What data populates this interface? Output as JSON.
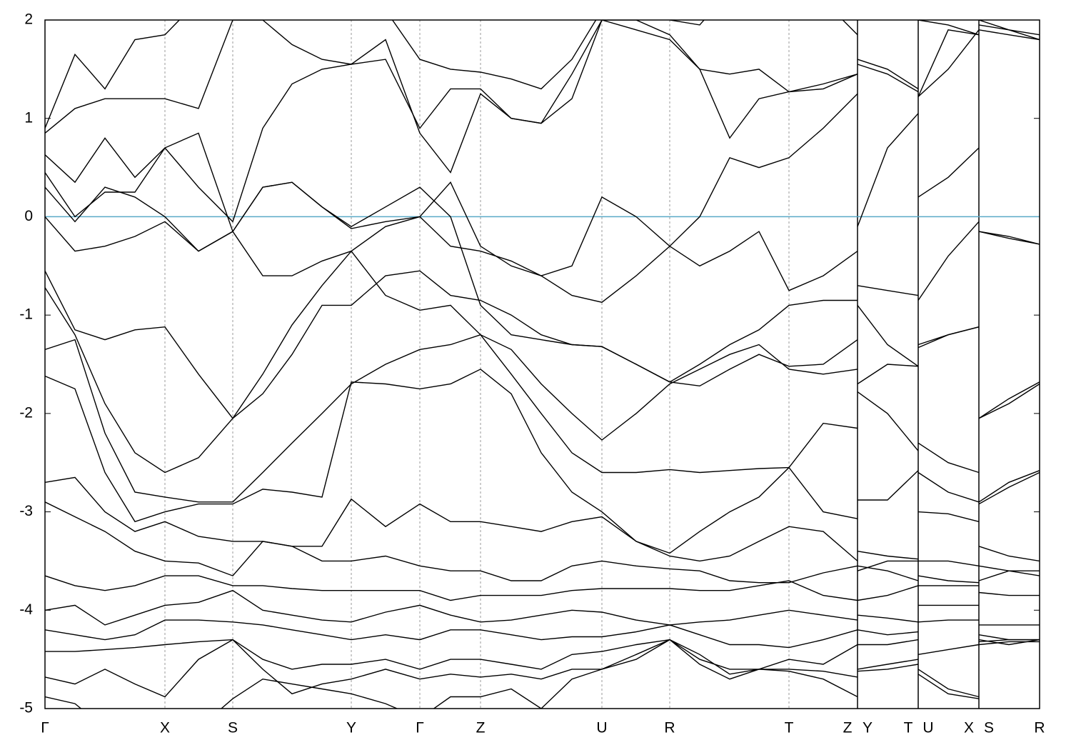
{
  "chart_data": {
    "type": "line",
    "xlim": [
      0,
      13.93
    ],
    "ylim": [
      -5,
      2
    ],
    "yticks": [
      -5,
      -4,
      -3,
      -2,
      -1,
      0,
      1,
      2
    ],
    "xticks": [
      {
        "value": 0,
        "label": "Γ"
      },
      {
        "value": 1.68,
        "label": "X"
      },
      {
        "value": 2.63,
        "label": "S"
      },
      {
        "value": 4.29,
        "label": "Y"
      },
      {
        "value": 5.25,
        "label": "Γ"
      },
      {
        "value": 6.1,
        "label": "Z"
      },
      {
        "value": 7.8,
        "label": "U"
      },
      {
        "value": 8.75,
        "label": "R"
      },
      {
        "value": 10.42,
        "label": "T"
      },
      {
        "value": 11.24,
        "label": "Z"
      },
      {
        "value": 11.52,
        "label": "Y"
      },
      {
        "value": 12.09,
        "label": "T"
      },
      {
        "value": 12.37,
        "label": "U"
      },
      {
        "value": 12.94,
        "label": "X"
      },
      {
        "value": 13.22,
        "label": "S"
      },
      {
        "value": 13.93,
        "label": "R"
      }
    ],
    "grid": true,
    "breaks": [
      11.38,
      12.23,
      13.08
    ],
    "hline": {
      "value": 0,
      "color": "#5aaac8"
    },
    "x": [
      0,
      0.42,
      0.84,
      1.26,
      1.68,
      2.15,
      2.63,
      3.05,
      3.46,
      3.88,
      4.29,
      4.77,
      5.25,
      5.68,
      6.1,
      6.53,
      6.95,
      7.38,
      7.8,
      8.28,
      8.75,
      9.17,
      9.59,
      10.0,
      10.42,
      10.9,
      11.38,
      11.38,
      11.8,
      12.23,
      12.23,
      12.65,
      13.08,
      13.08,
      13.5,
      13.93
    ],
    "series": [
      {
        "color": "#000000",
        "values": [
          0.0,
          -0.35,
          -0.3,
          -0.2,
          -0.05,
          -0.35,
          -0.15,
          -0.6,
          -0.6,
          -0.45,
          -0.35,
          -0.1,
          0.0,
          -0.3,
          -0.35,
          -0.45,
          -0.6,
          -0.8,
          -0.87,
          -0.6,
          -0.3,
          -0.5,
          -0.35,
          -0.15,
          -0.75,
          -0.6,
          -0.35,
          -0.7,
          -0.75,
          -0.8,
          -0.85,
          -0.4,
          -0.05,
          -0.15,
          -0.22,
          -0.28
        ]
      },
      {
        "color": "#000000",
        "values": [
          0.3,
          -0.05,
          0.3,
          0.2,
          0.0,
          -0.35,
          -0.15,
          0.3,
          0.35,
          0.1,
          -0.1,
          0.1,
          0.3,
          0.0,
          -0.9,
          -1.2,
          -1.25,
          -1.3,
          -1.32,
          -1.5,
          -1.68,
          -1.5,
          -1.3,
          -1.15,
          -0.9,
          -0.85,
          -0.85,
          -0.9,
          -1.3,
          -1.52,
          -1.33,
          -1.2,
          -1.12,
          -2.05,
          -1.85,
          -1.68
        ]
      },
      {
        "color": "#000000",
        "values": [
          0.45,
          0.0,
          0.25,
          0.25,
          0.7,
          0.85,
          -0.15,
          0.3,
          0.35,
          0.1,
          -0.12,
          -0.05,
          0.0,
          0.35,
          -0.3,
          -0.5,
          -0.6,
          -0.5,
          0.2,
          0.0,
          -0.3,
          0.0,
          0.6,
          0.5,
          0.6,
          0.9,
          1.25,
          -0.1,
          0.7,
          1.05,
          0.2,
          0.4,
          0.7,
          -0.15,
          -0.2,
          -0.28
        ]
      },
      {
        "color": "#000000",
        "values": [
          0.63,
          0.35,
          0.8,
          0.4,
          0.7,
          0.3,
          -0.05,
          0.9,
          1.35,
          1.5,
          1.55,
          1.8,
          0.85,
          0.45,
          1.25,
          1.0,
          0.95,
          1.45,
          2.0,
          1.9,
          1.8,
          1.5,
          1.45,
          1.5,
          1.27,
          1.35,
          1.45,
          1.55,
          1.45,
          1.27,
          1.22,
          1.9,
          1.85,
          1.9,
          1.85,
          1.8
        ]
      },
      {
        "color": "#000000",
        "values": [
          0.85,
          1.1,
          1.2,
          1.2,
          1.2,
          1.1,
          2.0,
          2.0,
          1.75,
          1.6,
          1.55,
          1.6,
          0.9,
          1.3,
          1.3,
          1.0,
          0.95,
          1.2,
          2.0,
          2.0,
          1.85,
          1.5,
          0.8,
          1.2,
          1.27,
          1.3,
          1.45,
          1.6,
          1.5,
          1.3,
          1.22,
          1.5,
          1.9,
          2.0,
          1.9,
          1.85
        ]
      },
      {
        "color": "#000000",
        "values": [
          0.9,
          1.65,
          1.3,
          1.8,
          1.85,
          2.2,
          2.5,
          2.3,
          2.1,
          2.2,
          2.3,
          2.1,
          1.6,
          1.5,
          1.47,
          1.4,
          1.3,
          1.6,
          2.1,
          2.1,
          2.0,
          1.95,
          2.3,
          2.4,
          2.5,
          2.2,
          1.85,
          2.2,
          2.2,
          2.2,
          2.0,
          1.95,
          1.85,
          1.95,
          1.9,
          1.8
        ]
      },
      {
        "color": "#000000",
        "values": [
          -0.55,
          -1.15,
          -1.25,
          -1.15,
          -1.12,
          -1.6,
          -2.05,
          -1.8,
          -1.4,
          -0.9,
          -0.9,
          -0.6,
          -0.55,
          -0.8,
          -0.85,
          -1.0,
          -1.2,
          -1.3,
          -1.32,
          -1.5,
          -1.68,
          -1.72,
          -1.55,
          -1.4,
          -1.52,
          -1.5,
          -1.25,
          -1.7,
          -1.5,
          -1.52,
          -1.3,
          -1.2,
          -1.12,
          -2.05,
          -1.9,
          -1.7
        ]
      },
      {
        "color": "#000000",
        "values": [
          -0.72,
          -1.2,
          -1.9,
          -2.4,
          -2.6,
          -2.45,
          -2.05,
          -1.6,
          -1.1,
          -0.7,
          -0.35,
          -0.8,
          -0.95,
          -0.9,
          -1.2,
          -1.35,
          -1.7,
          -2.0,
          -2.27,
          -2.0,
          -1.7,
          -1.55,
          -1.4,
          -1.3,
          -1.55,
          -1.6,
          -1.55,
          -1.78,
          -2.0,
          -2.38,
          -2.3,
          -2.5,
          -2.6,
          -2.9,
          -2.7,
          -2.58
        ]
      },
      {
        "color": "#000000",
        "values": [
          -1.35,
          -1.25,
          -2.2,
          -2.8,
          -2.85,
          -2.9,
          -2.9,
          -2.6,
          -2.3,
          -2.0,
          -1.7,
          -1.5,
          -1.35,
          -1.3,
          -1.2,
          -1.6,
          -2.0,
          -2.4,
          -2.6,
          -2.6,
          -2.57,
          -2.6,
          -2.58,
          -2.56,
          -2.55,
          -2.1,
          -2.15,
          -2.88,
          -2.88,
          -2.58,
          -2.6,
          -2.8,
          -2.9,
          -2.92,
          -2.75,
          -2.6
        ]
      },
      {
        "color": "#000000",
        "values": [
          -1.62,
          -1.75,
          -2.6,
          -3.1,
          -3.0,
          -2.92,
          -2.92,
          -2.77,
          -2.8,
          -2.85,
          -1.68,
          -1.7,
          -1.75,
          -1.7,
          -1.55,
          -1.8,
          -2.4,
          -2.8,
          -3.0,
          -3.3,
          -3.42,
          -3.2,
          -3.0,
          -2.85,
          -2.55,
          -3.0,
          -3.07,
          -3.4,
          -3.45,
          -3.48,
          -3.0,
          -3.02,
          -3.1,
          -3.35,
          -3.45,
          -3.5
        ]
      },
      {
        "color": "#000000",
        "values": [
          -2.7,
          -2.65,
          -3.0,
          -3.2,
          -3.1,
          -3.25,
          -3.3,
          -3.3,
          -3.35,
          -3.35,
          -2.87,
          -3.15,
          -2.92,
          -3.1,
          -3.1,
          -3.15,
          -3.2,
          -3.1,
          -3.05,
          -3.3,
          -3.45,
          -3.5,
          -3.45,
          -3.3,
          -3.15,
          -3.2,
          -3.5,
          -3.55,
          -3.6,
          -3.7,
          -3.5,
          -3.5,
          -3.55,
          -3.55,
          -3.6,
          -3.65
        ]
      },
      {
        "color": "#000000",
        "values": [
          -2.9,
          -3.05,
          -3.2,
          -3.4,
          -3.5,
          -3.52,
          -3.65,
          -3.3,
          -3.35,
          -3.5,
          -3.5,
          -3.45,
          -3.55,
          -3.6,
          -3.6,
          -3.7,
          -3.7,
          -3.55,
          -3.5,
          -3.55,
          -3.58,
          -3.6,
          -3.7,
          -3.72,
          -3.72,
          -3.62,
          -3.55,
          -3.6,
          -3.5,
          -3.5,
          -3.65,
          -3.7,
          -3.72,
          -3.7,
          -3.6,
          -3.6
        ]
      },
      {
        "color": "#000000",
        "values": [
          -3.65,
          -3.75,
          -3.8,
          -3.75,
          -3.65,
          -3.65,
          -3.75,
          -3.75,
          -3.78,
          -3.8,
          -3.8,
          -3.8,
          -3.8,
          -3.9,
          -3.85,
          -3.85,
          -3.85,
          -3.8,
          -3.78,
          -3.78,
          -3.78,
          -3.8,
          -3.8,
          -3.75,
          -3.7,
          -3.85,
          -3.9,
          -3.9,
          -3.85,
          -3.75,
          -3.75,
          -3.75,
          -3.75,
          -3.82,
          -3.85,
          -3.85
        ]
      },
      {
        "color": "#000000",
        "values": [
          -4.0,
          -3.95,
          -4.15,
          -4.05,
          -3.95,
          -3.92,
          -3.8,
          -4.0,
          -4.05,
          -4.1,
          -4.12,
          -4.02,
          -3.95,
          -4.05,
          -4.12,
          -4.1,
          -4.05,
          -4.0,
          -4.02,
          -4.1,
          -4.15,
          -4.12,
          -4.1,
          -4.05,
          -4.0,
          -4.05,
          -4.1,
          -4.05,
          -4.08,
          -4.12,
          -3.95,
          -3.95,
          -3.95,
          -4.15,
          -4.15,
          -4.15
        ]
      },
      {
        "color": "#000000",
        "values": [
          -4.2,
          -4.25,
          -4.3,
          -4.25,
          -4.1,
          -4.1,
          -4.12,
          -4.15,
          -4.2,
          -4.25,
          -4.3,
          -4.25,
          -4.3,
          -4.2,
          -4.2,
          -4.25,
          -4.3,
          -4.27,
          -4.27,
          -4.22,
          -4.15,
          -4.25,
          -4.35,
          -4.35,
          -4.38,
          -4.3,
          -4.2,
          -4.2,
          -4.25,
          -4.22,
          -4.12,
          -4.1,
          -4.1,
          -4.25,
          -4.3,
          -4.3
        ]
      },
      {
        "color": "#000000",
        "values": [
          -4.42,
          -4.42,
          -4.4,
          -4.38,
          -4.35,
          -4.32,
          -4.3,
          -4.5,
          -4.6,
          -4.55,
          -4.55,
          -4.5,
          -4.6,
          -4.5,
          -4.5,
          -4.55,
          -4.6,
          -4.45,
          -4.42,
          -4.35,
          -4.3,
          -4.5,
          -4.6,
          -4.6,
          -4.5,
          -4.55,
          -4.35,
          -4.35,
          -4.35,
          -4.3,
          -4.45,
          -4.4,
          -4.35,
          -4.3,
          -4.35,
          -4.3
        ]
      },
      {
        "color": "#000000",
        "values": [
          -4.68,
          -4.75,
          -4.6,
          -4.75,
          -4.88,
          -4.5,
          -4.3,
          -4.6,
          -4.85,
          -4.75,
          -4.7,
          -4.6,
          -4.7,
          -4.65,
          -4.68,
          -4.65,
          -4.7,
          -4.6,
          -4.6,
          -4.5,
          -4.3,
          -4.45,
          -4.65,
          -4.6,
          -4.6,
          -4.62,
          -4.68,
          -4.6,
          -4.55,
          -4.5,
          -4.6,
          -4.8,
          -4.88,
          -4.32,
          -4.3,
          -4.3
        ]
      },
      {
        "color": "#000000",
        "values": [
          -4.88,
          -4.95,
          -5.2,
          -5.3,
          -5.4,
          -5.2,
          -4.9,
          -4.7,
          -4.75,
          -4.8,
          -4.85,
          -4.95,
          -5.1,
          -4.88,
          -4.88,
          -4.8,
          -5.0,
          -4.7,
          -4.6,
          -4.45,
          -4.3,
          -4.55,
          -4.7,
          -4.6,
          -4.62,
          -4.7,
          -4.88,
          -4.62,
          -4.6,
          -4.55,
          -4.65,
          -4.85,
          -4.9,
          -4.35,
          -4.32,
          -4.32
        ]
      }
    ]
  }
}
